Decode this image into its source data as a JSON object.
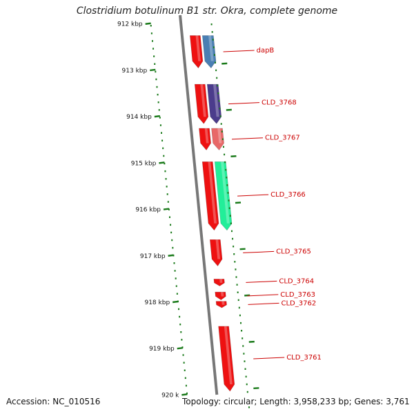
{
  "title": "Clostridium botulinum B1 str. Okra, complete genome",
  "footer": {
    "accession": "Accession: NC_010516",
    "summary": "Topology: circular; Length: 3,958,233 bp; Genes: 3,761"
  },
  "ruler": {
    "ticks": [
      {
        "kbp": 912,
        "label": "912 kbp"
      },
      {
        "kbp": 913,
        "label": "913 kbp"
      },
      {
        "kbp": 914,
        "label": "914 kbp"
      },
      {
        "kbp": 915,
        "label": "915 kbp"
      },
      {
        "kbp": 916,
        "label": "916 kbp"
      },
      {
        "kbp": 917,
        "label": "917 kbp"
      },
      {
        "kbp": 918,
        "label": "918 kbp"
      },
      {
        "kbp": 919,
        "label": "919 kbp"
      },
      {
        "kbp": 920,
        "label": "920 k"
      }
    ],
    "color": "#1a7a1a"
  },
  "genes": [
    {
      "name": "dapB",
      "start_kbp": 912.25,
      "end_kbp": 912.95,
      "strand": "reverse",
      "color": "#4a7fb3"
    },
    {
      "name": "CLD_3768",
      "start_kbp": 913.3,
      "end_kbp": 914.15,
      "strand": "reverse",
      "color": "#4b3c8c"
    },
    {
      "name": "CLD_3767",
      "start_kbp": 914.25,
      "end_kbp": 914.72,
      "strand": "reverse",
      "color": "#e86868"
    },
    {
      "name": "CLD_3766",
      "start_kbp": 914.97,
      "end_kbp": 916.45,
      "strand": "reverse",
      "color": "#22ee99"
    },
    {
      "name": "CLD_3765",
      "start_kbp": 916.65,
      "end_kbp": 917.22,
      "strand": "reverse",
      "color": "#ee1111"
    },
    {
      "name": "CLD_3764",
      "start_kbp": 917.5,
      "end_kbp": 917.65,
      "strand": "reverse",
      "color": "#ee1111"
    },
    {
      "name": "CLD_3763",
      "start_kbp": 917.78,
      "end_kbp": 917.95,
      "strand": "reverse",
      "color": "#ee1111"
    },
    {
      "name": "CLD_3762",
      "start_kbp": 917.98,
      "end_kbp": 918.12,
      "strand": "reverse",
      "color": "#ee1111"
    },
    {
      "name": "CLD_3761",
      "start_kbp": 918.52,
      "end_kbp": 919.92,
      "strand": "reverse",
      "color": "#ee1111"
    }
  ]
}
